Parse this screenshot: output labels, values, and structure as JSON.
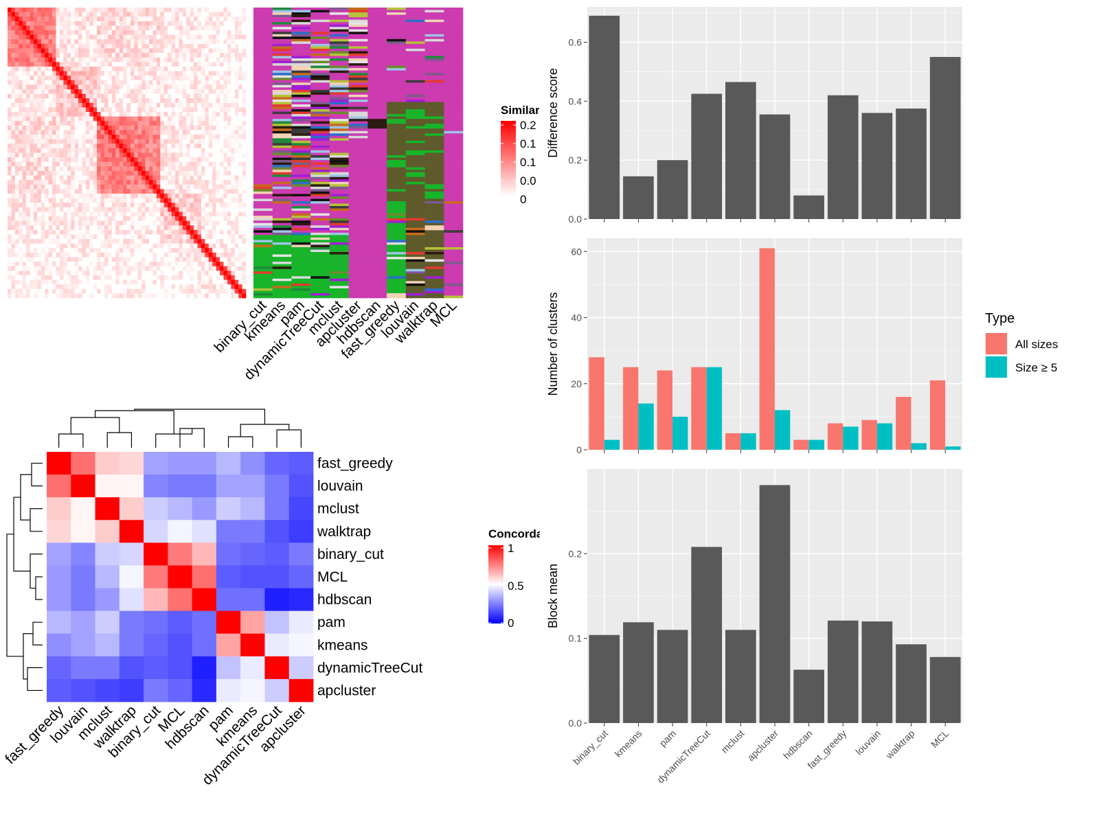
{
  "chart_data": [
    {
      "type": "heatmap",
      "legend_title": "Similarity",
      "legend_ticks": [
        "0.2",
        "0.1",
        "0.1",
        "0.0",
        "0"
      ],
      "colors": {
        "high": "#ff0000",
        "low": "#ffffff"
      }
    },
    {
      "type": "heatmap",
      "columns": [
        "binary_cut",
        "kmeans",
        "pam",
        "dynamicTreeCut",
        "mclust",
        "apcluster",
        "hdbscan",
        "fast_greedy",
        "louvain",
        "walktrap",
        "MCL"
      ]
    },
    {
      "type": "heatmap",
      "legend_title": "Concordance",
      "legend_ticks": [
        "1",
        "0.5",
        "0"
      ],
      "colors": {
        "high": "#ff0000",
        "mid": "#ffffff",
        "low": "#0000ff"
      },
      "rows": [
        "fast_greedy",
        "louvain",
        "mclust",
        "walktrap",
        "binary_cut",
        "MCL",
        "hdbscan",
        "pam",
        "kmeans",
        "dynamicTreeCut",
        "apcluster"
      ],
      "columns": [
        "fast_greedy",
        "louvain",
        "mclust",
        "walktrap",
        "binary_cut",
        "MCL",
        "hdbscan",
        "pam",
        "kmeans",
        "dynamicTreeCut",
        "apcluster"
      ],
      "values": [
        [
          1.0,
          0.78,
          0.6,
          0.58,
          0.32,
          0.3,
          0.3,
          0.36,
          0.28,
          0.2,
          0.18
        ],
        [
          0.78,
          1.0,
          0.52,
          0.52,
          0.26,
          0.24,
          0.24,
          0.32,
          0.32,
          0.24,
          0.16
        ],
        [
          0.6,
          0.52,
          1.0,
          0.6,
          0.4,
          0.36,
          0.3,
          0.4,
          0.36,
          0.24,
          0.14
        ],
        [
          0.58,
          0.52,
          0.6,
          1.0,
          0.42,
          0.48,
          0.44,
          0.24,
          0.24,
          0.16,
          0.12
        ],
        [
          0.32,
          0.26,
          0.4,
          0.42,
          1.0,
          0.76,
          0.64,
          0.22,
          0.2,
          0.18,
          0.24
        ],
        [
          0.3,
          0.24,
          0.36,
          0.48,
          0.76,
          1.0,
          0.78,
          0.18,
          0.16,
          0.16,
          0.2
        ],
        [
          0.3,
          0.24,
          0.3,
          0.44,
          0.64,
          0.78,
          1.0,
          0.22,
          0.22,
          0.06,
          0.08
        ],
        [
          0.36,
          0.32,
          0.4,
          0.24,
          0.22,
          0.18,
          0.22,
          1.0,
          0.68,
          0.38,
          0.46
        ],
        [
          0.28,
          0.32,
          0.36,
          0.24,
          0.2,
          0.16,
          0.22,
          0.68,
          1.0,
          0.46,
          0.48
        ],
        [
          0.2,
          0.24,
          0.24,
          0.16,
          0.18,
          0.16,
          0.06,
          0.38,
          0.46,
          1.0,
          0.4
        ],
        [
          0.18,
          0.16,
          0.14,
          0.12,
          0.24,
          0.2,
          0.08,
          0.46,
          0.48,
          0.4,
          1.0
        ]
      ]
    },
    {
      "type": "bar",
      "ylabel": "Difference score",
      "ylim": [
        0,
        0.72
      ],
      "yticks": [
        "0.0",
        "0.2",
        "0.4",
        "0.6"
      ],
      "categories": [
        "binary_cut",
        "kmeans",
        "pam",
        "dynamicTreeCut",
        "mclust",
        "apcluster",
        "hdbscan",
        "fast_greedy",
        "louvain",
        "walktrap",
        "MCL"
      ],
      "values": [
        0.69,
        0.145,
        0.2,
        0.425,
        0.465,
        0.355,
        0.08,
        0.42,
        0.36,
        0.375,
        0.55
      ]
    },
    {
      "type": "bar",
      "ylabel": "Number of clusters",
      "ylim": [
        0,
        64
      ],
      "yticks": [
        "0",
        "20",
        "40",
        "60"
      ],
      "legend_title": "Type",
      "categories": [
        "binary_cut",
        "kmeans",
        "pam",
        "dynamicTreeCut",
        "mclust",
        "apcluster",
        "hdbscan",
        "fast_greedy",
        "louvain",
        "walktrap",
        "MCL"
      ],
      "series": [
        {
          "name": "All sizes",
          "color": "#f8766d",
          "values": [
            28,
            25,
            24,
            25,
            5,
            61,
            3,
            8,
            9,
            16,
            21
          ]
        },
        {
          "name": "Size ≥ 5",
          "color": "#00bfc4",
          "values": [
            3,
            14,
            10,
            25,
            5,
            12,
            3,
            7,
            8,
            2,
            1
          ]
        }
      ]
    },
    {
      "type": "bar",
      "ylabel": "Block mean",
      "ylim": [
        0,
        0.3
      ],
      "yticks": [
        "0.0",
        "0.1",
        "0.2"
      ],
      "categories": [
        "binary_cut",
        "kmeans",
        "pam",
        "dynamicTreeCut",
        "mclust",
        "apcluster",
        "hdbscan",
        "fast_greedy",
        "louvain",
        "walktrap",
        "MCL"
      ],
      "values": [
        0.104,
        0.119,
        0.11,
        0.208,
        0.11,
        0.281,
        0.063,
        0.121,
        0.12,
        0.093,
        0.078
      ]
    }
  ]
}
